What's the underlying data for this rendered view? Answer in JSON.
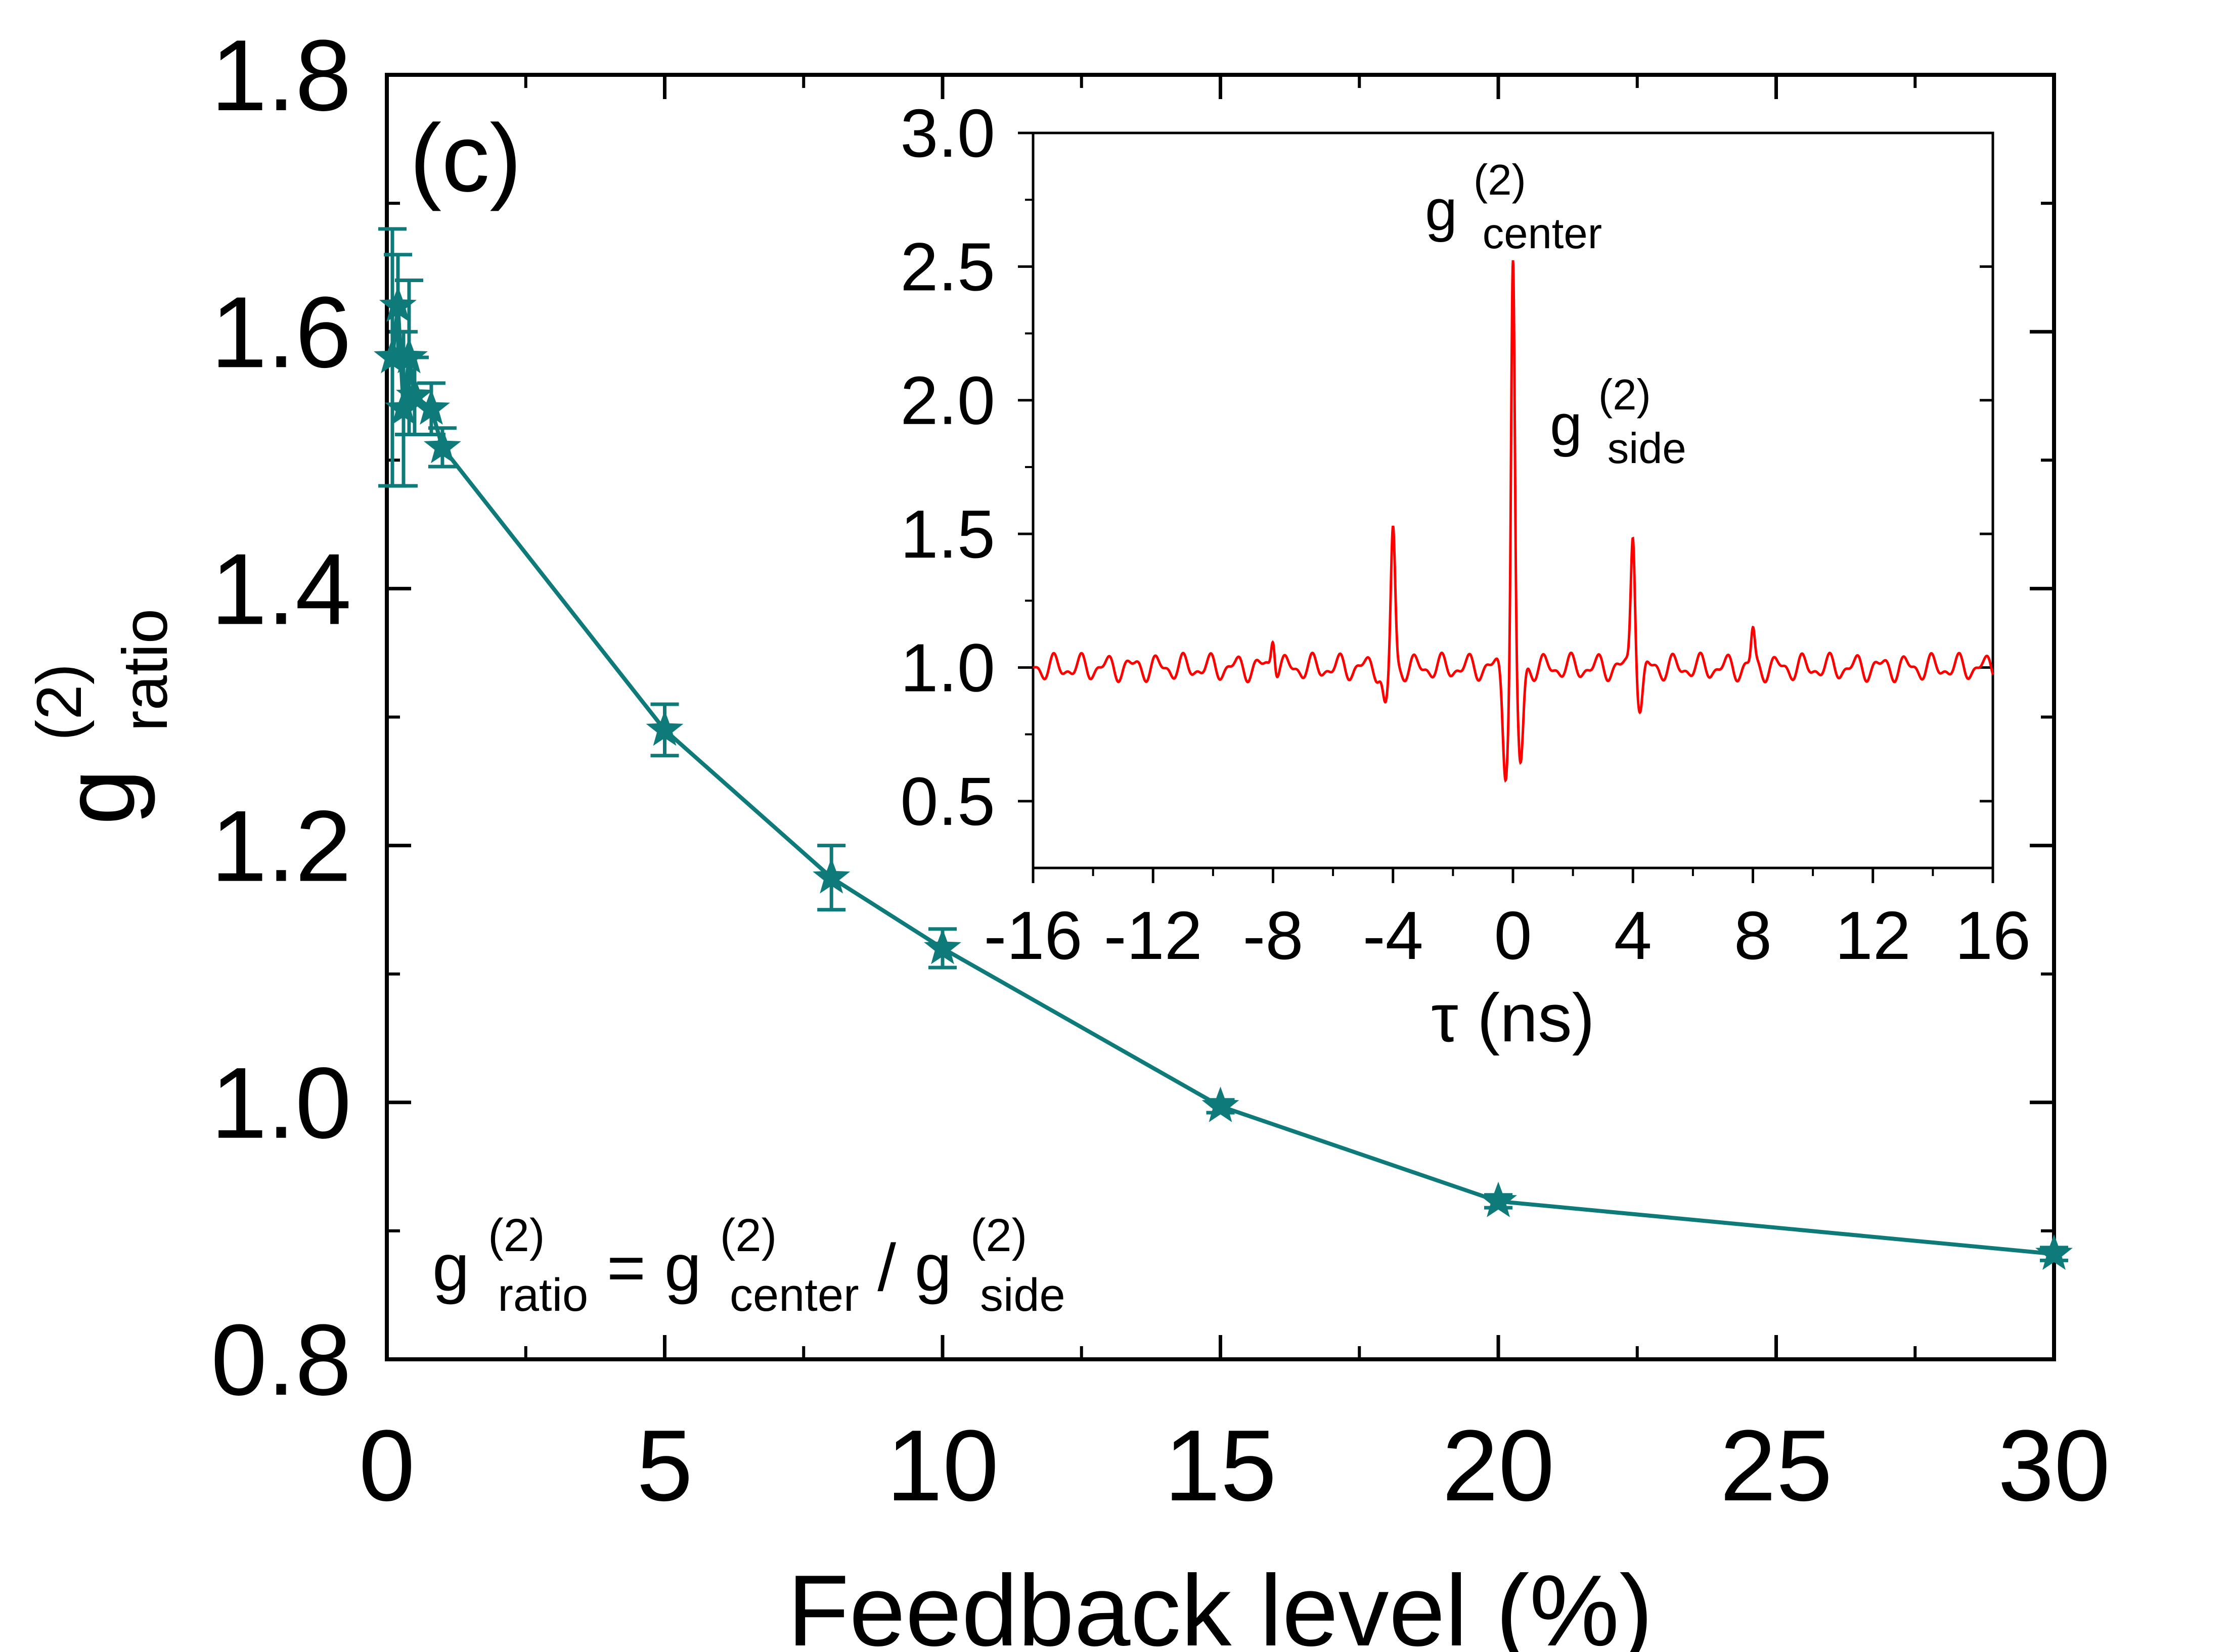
{
  "chart_data": [
    {
      "type": "line",
      "panel_label": "(c)",
      "title": "",
      "xlabel": "Feedback level (%)",
      "ylabel": {
        "base": "g",
        "sup": "(2)",
        "sub": "ratio"
      },
      "xlim": [
        0,
        30
      ],
      "ylim": [
        0.8,
        1.8
      ],
      "xticks": [
        0,
        5,
        10,
        15,
        20,
        25,
        30
      ],
      "xtick_labels": [
        "0",
        "5",
        "10",
        "15",
        "20",
        "25",
        "30"
      ],
      "yticks": [
        0.8,
        1.0,
        1.2,
        1.4,
        1.6,
        1.8
      ],
      "ytick_labels": [
        "0.8",
        "1.0",
        "1.2",
        "1.4",
        "1.6",
        "1.8"
      ],
      "series": [
        {
          "name": "g(2) ratio",
          "color": "#0f7a7a",
          "marker": "star",
          "x": [
            0.1,
            0.2,
            0.3,
            0.4,
            0.5,
            0.8,
            1,
            5,
            8,
            10,
            15,
            20,
            30
          ],
          "y": [
            1.58,
            1.62,
            1.54,
            1.58,
            1.55,
            1.54,
            1.51,
            1.29,
            1.175,
            1.12,
            0.997,
            0.923,
            0.882
          ],
          "yerr": [
            0.1,
            0.04,
            0.06,
            0.06,
            0.03,
            0.02,
            0.015,
            0.02,
            0.025,
            0.015,
            0.005,
            0.005,
            0.005
          ]
        }
      ],
      "annotation": {
        "lhs": {
          "base": "g",
          "sup": "(2)",
          "sub": "ratio"
        },
        "eq": "=",
        "num": {
          "base": "g",
          "sup": "(2)",
          "sub": "center"
        },
        "slash": "/",
        "den": {
          "base": "g",
          "sup": "(2)",
          "sub": "side"
        }
      }
    },
    {
      "type": "line",
      "inset": true,
      "title": "",
      "xlabel": "τ (ns)",
      "ylabel": "",
      "xlim": [
        -16,
        16
      ],
      "ylim": [
        0.25,
        3.0
      ],
      "xticks": [
        -16,
        -12,
        -8,
        -4,
        0,
        4,
        8,
        12,
        16
      ],
      "xtick_labels": [
        "-16",
        "-12",
        "-8",
        "-4",
        "0",
        "4",
        "8",
        "12",
        "16"
      ],
      "yticks": [
        0.5,
        1.0,
        1.5,
        2.0,
        2.5,
        3.0
      ],
      "ytick_labels": [
        "0.5",
        "1.0",
        "1.5",
        "2.0",
        "2.5",
        "3.0"
      ],
      "series": [
        {
          "name": "g(2)(τ)",
          "color": "#ff0000",
          "baseline": 1.0,
          "peaks": [
            {
              "tau": 0,
              "height": 2.52
            },
            {
              "tau": -4,
              "height": 1.52
            },
            {
              "tau": 4,
              "height": 1.52
            },
            {
              "tau": -8,
              "height": 1.13
            },
            {
              "tau": 8,
              "height": 1.13
            }
          ],
          "dips": [
            {
              "tau": -0.25,
              "value": 0.63
            },
            {
              "tau": 0.25,
              "value": 0.63
            },
            {
              "tau": -4.25,
              "value": 0.84
            },
            {
              "tau": 4.25,
              "value": 0.84
            }
          ]
        }
      ],
      "labels": [
        {
          "base": "g",
          "sup": "(2)",
          "sub": "center"
        },
        {
          "base": "g",
          "sup": "(2)",
          "sub": "side"
        }
      ]
    }
  ]
}
